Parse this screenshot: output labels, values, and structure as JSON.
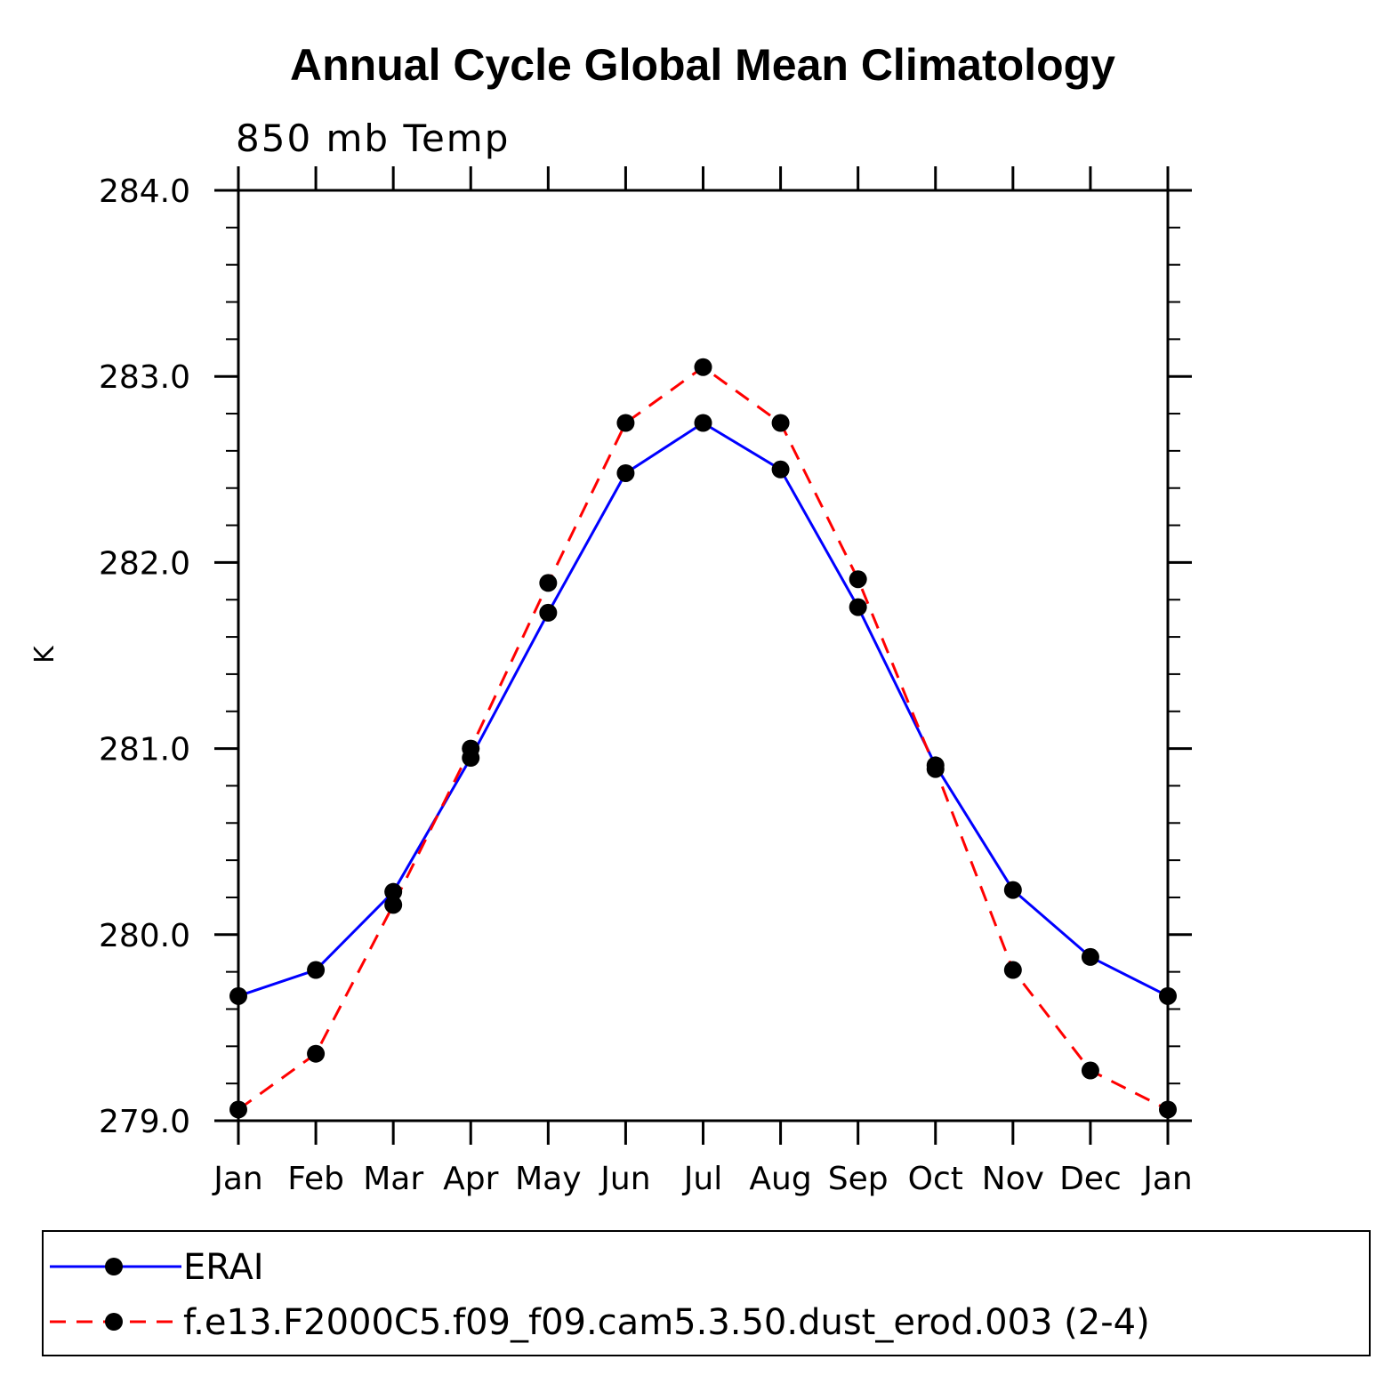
{
  "chart_data": {
    "type": "line",
    "title": "Annual Cycle Global Mean Climatology",
    "subtitle": "850 mb Temp",
    "xlabel": "",
    "ylabel": "K",
    "categories": [
      "Jan",
      "Feb",
      "Mar",
      "Apr",
      "May",
      "Jun",
      "Jul",
      "Aug",
      "Sep",
      "Oct",
      "Nov",
      "Dec",
      "Jan"
    ],
    "ylim": [
      279.0,
      284.0
    ],
    "yticks": [
      279.0,
      280.0,
      281.0,
      282.0,
      283.0,
      284.0
    ],
    "ytick_labels": [
      "279.0",
      "280.0",
      "281.0",
      "282.0",
      "283.0",
      "284.0"
    ],
    "legend_position": "bottom",
    "series": [
      {
        "name": "ERAI",
        "color": "#0000ff",
        "dash": "solid",
        "values": [
          279.67,
          279.81,
          280.23,
          280.95,
          281.73,
          282.48,
          282.75,
          282.5,
          281.76,
          280.91,
          280.24,
          279.88,
          279.67
        ]
      },
      {
        "name": "f.e13.F2000C5.f09_f09.cam5.3.50.dust_erod.003 (2-4)",
        "color": "#ff0000",
        "dash": "dashed",
        "values": [
          279.06,
          279.36,
          280.16,
          281.0,
          281.89,
          282.75,
          283.05,
          282.75,
          281.91,
          280.89,
          279.81,
          279.27,
          279.06
        ]
      }
    ]
  }
}
